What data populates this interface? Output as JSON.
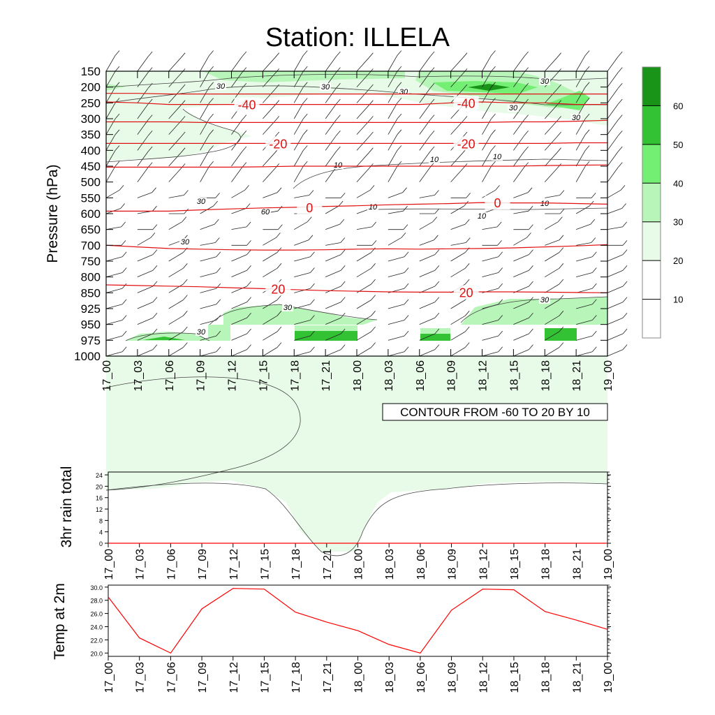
{
  "title": "Station: ILLELA",
  "chart_data": [
    {
      "type": "contour",
      "name": "pressure-time",
      "ylabel": "Pressure (hPa)",
      "y_ticks": [
        150,
        200,
        250,
        300,
        350,
        400,
        450,
        500,
        550,
        600,
        650,
        700,
        750,
        800,
        850,
        925,
        950,
        975,
        1000
      ],
      "x_ticks": [
        "17_00",
        "17_03",
        "17_06",
        "17_09",
        "17_12",
        "17_15",
        "17_18",
        "17_21",
        "18_00",
        "18_03",
        "18_06",
        "18_09",
        "18_12",
        "18_15",
        "18_18",
        "18_21",
        "19_00"
      ],
      "contour_info": "CONTOUR FROM -60 TO 20 BY 10",
      "temperature_contours": [
        {
          "label": "-40",
          "levels": [
            247,
            250,
            255,
            255,
            255,
            255,
            255,
            255,
            255,
            255,
            255,
            250,
            247,
            250,
            250,
            255,
            255
          ]
        },
        {
          "label": "-20",
          "levels": [
            378,
            378,
            378,
            378,
            378,
            378,
            378,
            378,
            378,
            378,
            378,
            378,
            378,
            378,
            378,
            376,
            376
          ]
        },
        {
          "label": "0",
          "levels": [
            592,
            592,
            592,
            588,
            585,
            582,
            580,
            577,
            575,
            572,
            570,
            568,
            565,
            566,
            566,
            568,
            570
          ]
        },
        {
          "label": "20",
          "levels": [
            825,
            827,
            829,
            831,
            834,
            837,
            840,
            843,
            845,
            847,
            848,
            848,
            847,
            847,
            848,
            849,
            850
          ]
        }
      ],
      "extra_contours": [
        {
          "label": "",
          "levels": [
            220,
            220,
            222,
            222,
            222,
            222,
            222,
            222,
            222,
            222,
            222,
            222,
            222,
            222,
            222,
            222,
            222
          ]
        },
        {
          "label": "",
          "levels": [
            310,
            310,
            310,
            312,
            312,
            312,
            312,
            312,
            312,
            312,
            312,
            312,
            312,
            310,
            310,
            308,
            305
          ]
        },
        {
          "label": "",
          "levels": [
            453,
            453,
            453,
            453,
            453,
            452,
            450,
            450,
            450,
            450,
            450,
            450,
            450,
            450,
            448,
            447,
            446
          ]
        },
        {
          "label": "",
          "levels": [
            700,
            705,
            710,
            712,
            714,
            715,
            715,
            714,
            712,
            711,
            712,
            711,
            710,
            708,
            705,
            702,
            698
          ]
        }
      ],
      "contour_labels": [
        "30",
        "30",
        "30",
        "30",
        "30",
        "30",
        "30",
        "30",
        "10",
        "10",
        "10",
        "10",
        "10",
        "10",
        "30",
        "60"
      ],
      "legend": {
        "title": "",
        "levels": [
          "60",
          "50",
          "40",
          "30",
          "20",
          "10"
        ],
        "colors": [
          "#199419",
          "#33c233",
          "#73f073",
          "#b8f5b8",
          "#e8fbe8",
          "#ffffff",
          "#ffffff"
        ]
      }
    },
    {
      "type": "line",
      "name": "3hr-rain",
      "ylabel": "3hr rain total",
      "x": [
        "17_00",
        "17_03",
        "17_06",
        "17_09",
        "17_12",
        "17_15",
        "17_18",
        "17_21",
        "18_00",
        "18_03",
        "18_06",
        "18_09",
        "18_12",
        "18_15",
        "18_18",
        "18_21",
        "19_00"
      ],
      "values": [
        0,
        0,
        0,
        0,
        0,
        0,
        0,
        0,
        0,
        0,
        0,
        0,
        0,
        0,
        0,
        0,
        0
      ],
      "y_ticks": [
        "0",
        "4",
        "8",
        "12",
        "16",
        "20",
        "24"
      ],
      "ylim": [
        0,
        25
      ],
      "color": "#ff0000"
    },
    {
      "type": "line",
      "name": "temp-2m",
      "ylabel": "Temp at 2m",
      "x": [
        "17_00",
        "17_03",
        "17_06",
        "17_09",
        "17_12",
        "17_15",
        "17_18",
        "17_21",
        "18_00",
        "18_03",
        "18_06",
        "18_09",
        "18_12",
        "18_15",
        "18_18",
        "18_21",
        "19_00"
      ],
      "values": [
        28.5,
        22.3,
        20.0,
        26.7,
        29.8,
        29.7,
        26.2,
        24.7,
        23.4,
        21.3,
        20.0,
        26.5,
        29.7,
        29.6,
        26.3,
        25.0,
        23.6
      ],
      "y_ticks": [
        "20.0",
        "22.0",
        "24.0",
        "26.0",
        "28.0",
        "30.0"
      ],
      "ylim": [
        19.5,
        30.3
      ],
      "color": "#ff0000"
    }
  ]
}
